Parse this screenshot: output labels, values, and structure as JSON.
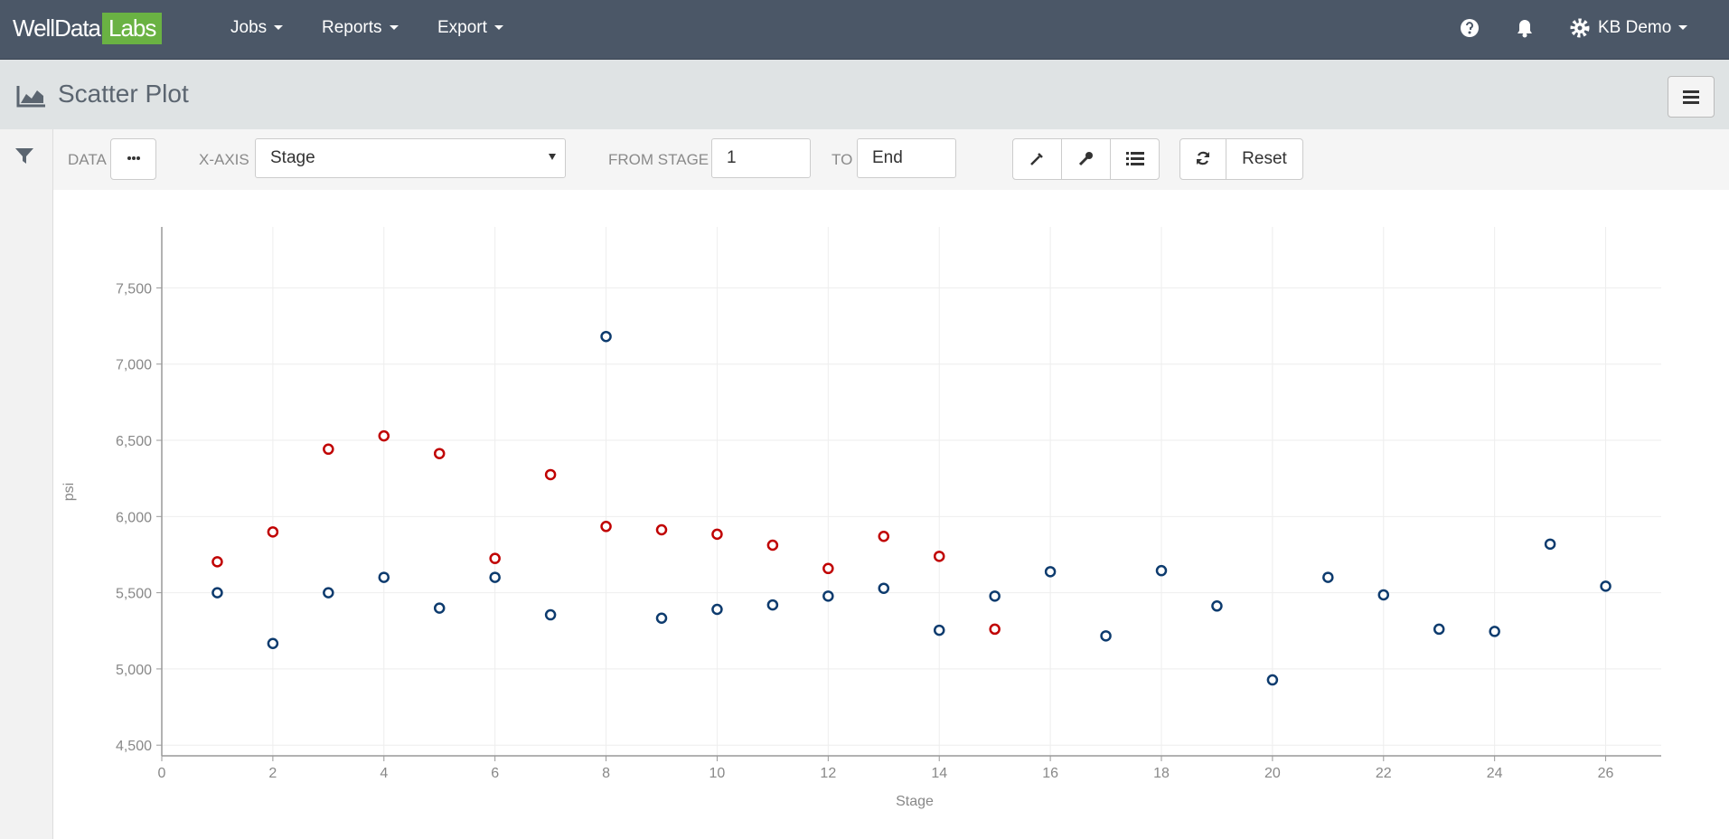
{
  "navbar": {
    "logo_main": "WellData",
    "logo_accent": "Labs",
    "menus": [
      "Jobs",
      "Reports",
      "Export"
    ],
    "user": "KB Demo"
  },
  "header": {
    "title": "Scatter Plot"
  },
  "toolbar": {
    "data_label": "DATA",
    "x_axis_label": "X-AXIS",
    "x_axis_value": "Stage",
    "from_label": "FROM STAGE",
    "from_value": "1",
    "to_label": "TO",
    "to_value": "End",
    "reset": "Reset"
  },
  "chart_data": {
    "type": "scatter",
    "x_label": "Stage",
    "y_label": "psi",
    "xlim": [
      0,
      27
    ],
    "xticks": [
      0,
      2,
      4,
      6,
      8,
      10,
      12,
      14,
      16,
      18,
      20,
      22,
      24,
      26
    ],
    "ylim": [
      4430,
      7900
    ],
    "yticks": [
      {
        "value": 4500,
        "label": "4,500"
      },
      {
        "value": 5000,
        "label": "5,000"
      },
      {
        "value": 5500,
        "label": "5,500"
      },
      {
        "value": 6000,
        "label": "6,000"
      },
      {
        "value": 6500,
        "label": "6,500"
      },
      {
        "value": 7000,
        "label": "7,000"
      },
      {
        "value": 7500,
        "label": "7,500"
      }
    ],
    "grid": true,
    "series": [
      {
        "color": "#0d3b6e",
        "x": [
          1,
          2,
          3,
          4,
          5,
          6,
          7,
          8,
          9,
          10,
          11,
          12,
          13,
          14,
          15,
          16,
          17,
          18,
          19,
          20,
          21,
          22,
          23,
          24,
          25,
          26
        ],
        "values": [
          5500,
          5167,
          5500,
          5601,
          5399,
          5601,
          5355,
          7181,
          5333,
          5391,
          5420,
          5478,
          5529,
          5254,
          5478,
          5638,
          5217,
          5645,
          5413,
          4928,
          5601,
          5486,
          5261,
          5246,
          5819,
          5543
        ]
      },
      {
        "color": "#c00000",
        "x": [
          1,
          2,
          3,
          4,
          5,
          6,
          7,
          8,
          9,
          10,
          11,
          12,
          13,
          14,
          15
        ],
        "values": [
          5703,
          5899,
          6442,
          6529,
          6413,
          5725,
          6275,
          5935,
          5913,
          5884,
          5812,
          5659,
          5870,
          5739,
          5261
        ]
      }
    ]
  }
}
